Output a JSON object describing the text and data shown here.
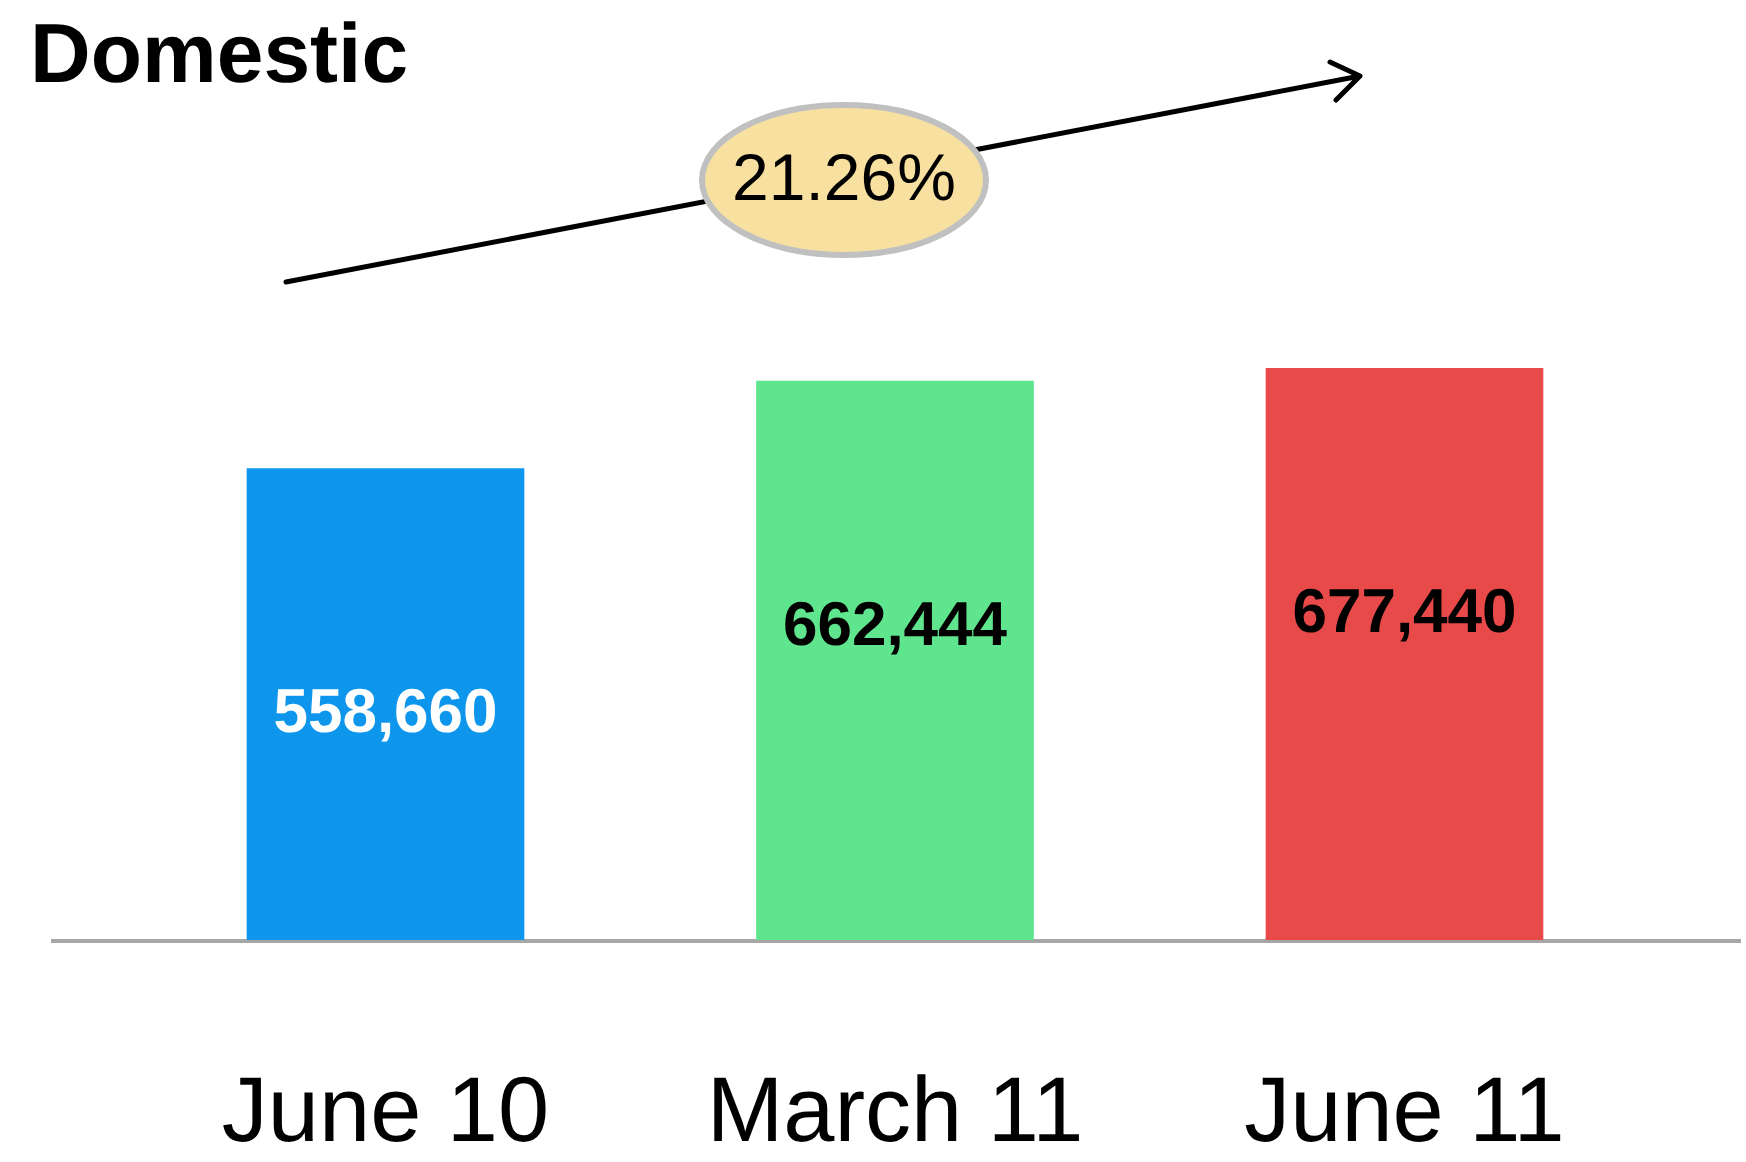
{
  "chart_data": {
    "type": "bar",
    "title": "Domestic",
    "categories": [
      "June 10",
      "March 11",
      "June 11"
    ],
    "values": [
      558660,
      662444,
      677440
    ],
    "colors": [
      "#0d96ec",
      "#5ee58e",
      "#e84a4a"
    ],
    "value_labels": [
      "558,660",
      "662,444",
      "677,440"
    ],
    "annotations": [
      "21.26%"
    ]
  }
}
